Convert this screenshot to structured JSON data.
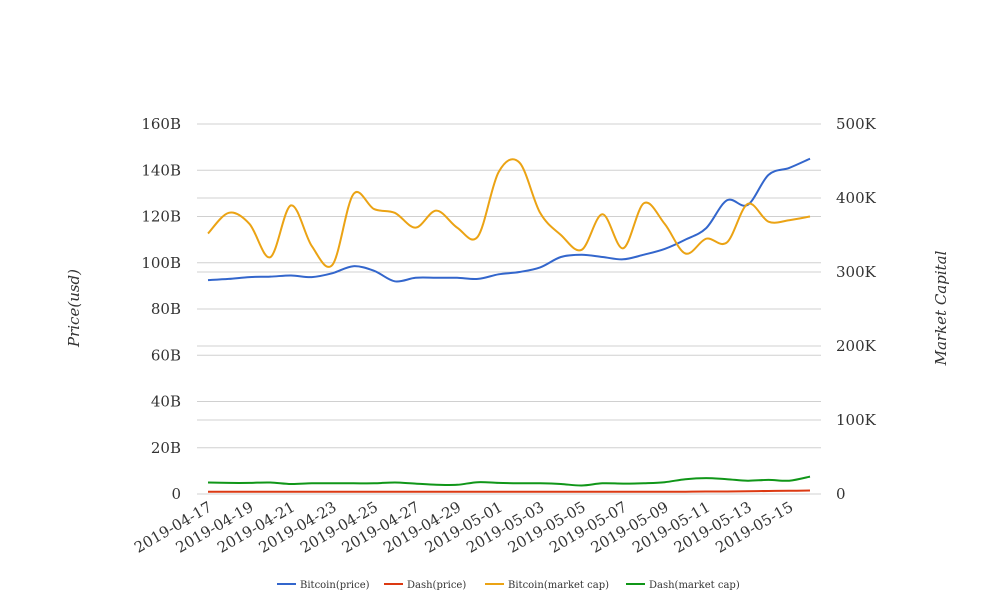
{
  "chart_data": {
    "type": "line",
    "x": [
      "2019-04-17",
      "2019-04-18",
      "2019-04-19",
      "2019-04-20",
      "2019-04-21",
      "2019-04-22",
      "2019-04-23",
      "2019-04-24",
      "2019-04-25",
      "2019-04-26",
      "2019-04-27",
      "2019-04-28",
      "2019-04-29",
      "2019-04-30",
      "2019-05-01",
      "2019-05-02",
      "2019-05-03",
      "2019-05-04",
      "2019-05-05",
      "2019-05-06",
      "2019-05-07",
      "2019-05-08",
      "2019-05-09",
      "2019-05-10",
      "2019-05-11",
      "2019-05-12",
      "2019-05-13",
      "2019-05-14",
      "2019-05-15",
      "2019-05-16"
    ],
    "x_tick_labels": [
      "2019-04-17",
      "2019-04-19",
      "2019-04-21",
      "2019-04-23",
      "2019-04-25",
      "2019-04-27",
      "2019-04-29",
      "2019-05-01",
      "2019-05-03",
      "2019-05-05",
      "2019-05-07",
      "2019-05-09",
      "2019-05-11",
      "2019-05-13",
      "2019-05-15"
    ],
    "series": [
      {
        "name": "Bitcoin(price)",
        "axis": "left",
        "color": "#3366cc",
        "values": [
          92500000000.0,
          93000000000.0,
          93800000000.0,
          94000000000.0,
          94500000000.0,
          93800000000.0,
          95500000000.0,
          98500000000.0,
          96500000000.0,
          92000000000.0,
          93500000000.0,
          93500000000.0,
          93500000000.0,
          93000000000.0,
          95000000000.0,
          96000000000.0,
          98000000000.0,
          102500000000.0,
          103500000000.0,
          102500000000.0,
          101500000000.0,
          103500000000.0,
          106000000000.0,
          110000000000.0,
          115000000000.0,
          127000000000.0,
          125000000000.0,
          138000000000.0,
          141000000000.0,
          145000000000.0
        ]
      },
      {
        "name": "Dash(price)",
        "axis": "left",
        "color": "#dc3912",
        "values": [
          1000000000.0,
          1000000000.0,
          1000000000.0,
          1000000000.0,
          1000000000.0,
          1000000000.0,
          1000000000.0,
          1000000000.0,
          1000000000.0,
          1000000000.0,
          1000000000.0,
          1000000000.0,
          1000000000.0,
          1000000000.0,
          1000000000.0,
          1000000000.0,
          1000000000.0,
          1000000000.0,
          1000000000.0,
          1000000000.0,
          1000000000.0,
          1000000000.0,
          1000000000.0,
          1000000000.0,
          1100000000.0,
          1100000000.0,
          1200000000.0,
          1300000000.0,
          1400000000.0,
          1500000000.0
        ]
      },
      {
        "name": "Bitcoin(market cap)",
        "axis": "right",
        "color": "#eba314",
        "values": [
          352000,
          380000,
          365000,
          320000,
          390000,
          335000,
          310000,
          405000,
          385000,
          380000,
          360000,
          383000,
          360000,
          348000,
          435000,
          448000,
          380000,
          350000,
          330000,
          378000,
          332000,
          393000,
          365000,
          325000,
          345000,
          340000,
          392000,
          368000,
          370000,
          375000
        ]
      },
      {
        "name": "Dash(market cap)",
        "axis": "right",
        "color": "#109618",
        "values": [
          15500,
          15000,
          15000,
          15500,
          13500,
          14500,
          14500,
          14500,
          14500,
          15500,
          14000,
          12500,
          12500,
          16000,
          15000,
          14500,
          14500,
          13500,
          11500,
          14500,
          14000,
          14500,
          16000,
          20000,
          21500,
          20000,
          18000,
          19000,
          18000,
          23500
        ]
      }
    ],
    "left_axis": {
      "label": "Price(usd)",
      "min": 0,
      "max": 160000000000,
      "ticks": [
        0,
        20000000000,
        40000000000,
        60000000000,
        80000000000,
        100000000000,
        120000000000,
        140000000000,
        160000000000
      ],
      "tick_labels": [
        "0",
        "20B",
        "40B",
        "60B",
        "80B",
        "100B",
        "120B",
        "140B",
        "160B"
      ]
    },
    "right_axis": {
      "label": "Market Capital",
      "min": 0,
      "max": 500000,
      "ticks": [
        0,
        100000,
        200000,
        300000,
        400000,
        500000
      ],
      "tick_labels": [
        "0",
        "100K",
        "200K",
        "300K",
        "400K",
        "500K"
      ]
    },
    "grid": true,
    "legend_position": "bottom"
  }
}
